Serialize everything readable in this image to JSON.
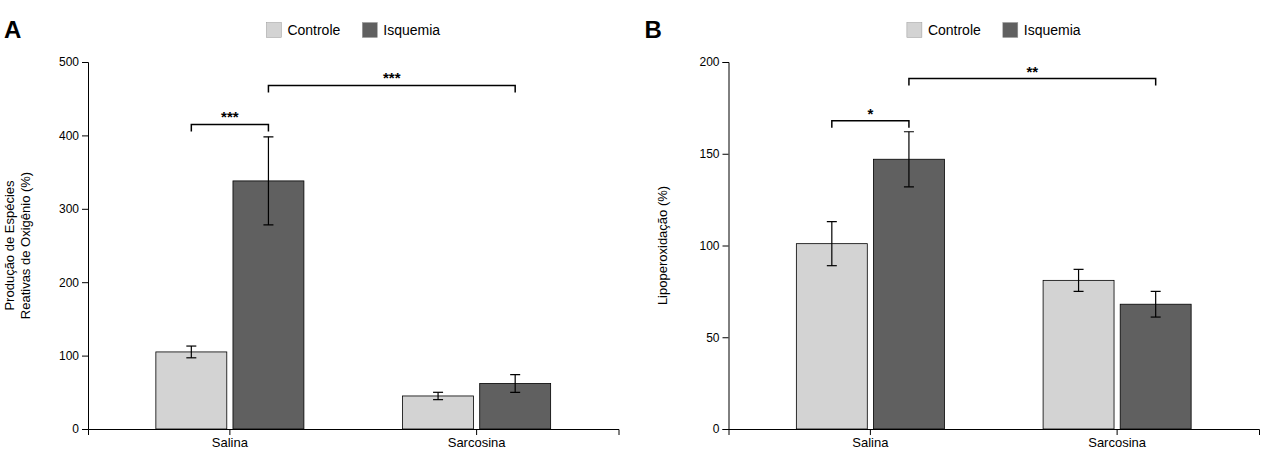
{
  "chart_data": [
    {
      "type": "bar",
      "title": "A",
      "y_label": "Produção de Espécies\nReativas de Oxigênio (%)",
      "categories": [
        "Salina",
        "Sarcosina"
      ],
      "series": [
        {
          "name": "Controle",
          "color": "#d3d3d3",
          "values": [
            105,
            45
          ],
          "errors": [
            8,
            5
          ]
        },
        {
          "name": "Isquemia",
          "color": "#606060",
          "values": [
            338,
            62
          ],
          "errors": [
            60,
            12
          ]
        }
      ],
      "ylim": [
        0,
        500
      ],
      "yticks": [
        0,
        100,
        200,
        300,
        400,
        500
      ],
      "grid": false,
      "legend": "top",
      "annotations": [
        {
          "text": "***",
          "y": 415,
          "from": {
            "category": "Salina",
            "series": "Controle"
          },
          "to": {
            "category": "Salina",
            "series": "Isquemia"
          }
        },
        {
          "text": "***",
          "y": 468,
          "from": {
            "category": "Salina",
            "series": "Isquemia"
          },
          "to": {
            "category": "Sarcosina",
            "series": "Isquemia"
          }
        }
      ]
    },
    {
      "type": "bar",
      "title": "B",
      "y_label": "Lipoperoxidação (%)",
      "categories": [
        "Salina",
        "Sarcosina"
      ],
      "series": [
        {
          "name": "Controle",
          "color": "#d3d3d3",
          "values": [
            101,
            81
          ],
          "errors": [
            12,
            6
          ]
        },
        {
          "name": "Isquemia",
          "color": "#606060",
          "values": [
            147,
            68
          ],
          "errors": [
            15,
            7
          ]
        }
      ],
      "ylim": [
        0,
        200
      ],
      "yticks": [
        0,
        50,
        100,
        150,
        200
      ],
      "grid": false,
      "legend": "top",
      "annotations": [
        {
          "text": "*",
          "y": 168,
          "from": {
            "category": "Salina",
            "series": "Controle"
          },
          "to": {
            "category": "Salina",
            "series": "Isquemia"
          }
        },
        {
          "text": "**",
          "y": 191,
          "from": {
            "category": "Salina",
            "series": "Isquemia"
          },
          "to": {
            "category": "Sarcosina",
            "series": "Isquemia"
          }
        }
      ]
    }
  ]
}
